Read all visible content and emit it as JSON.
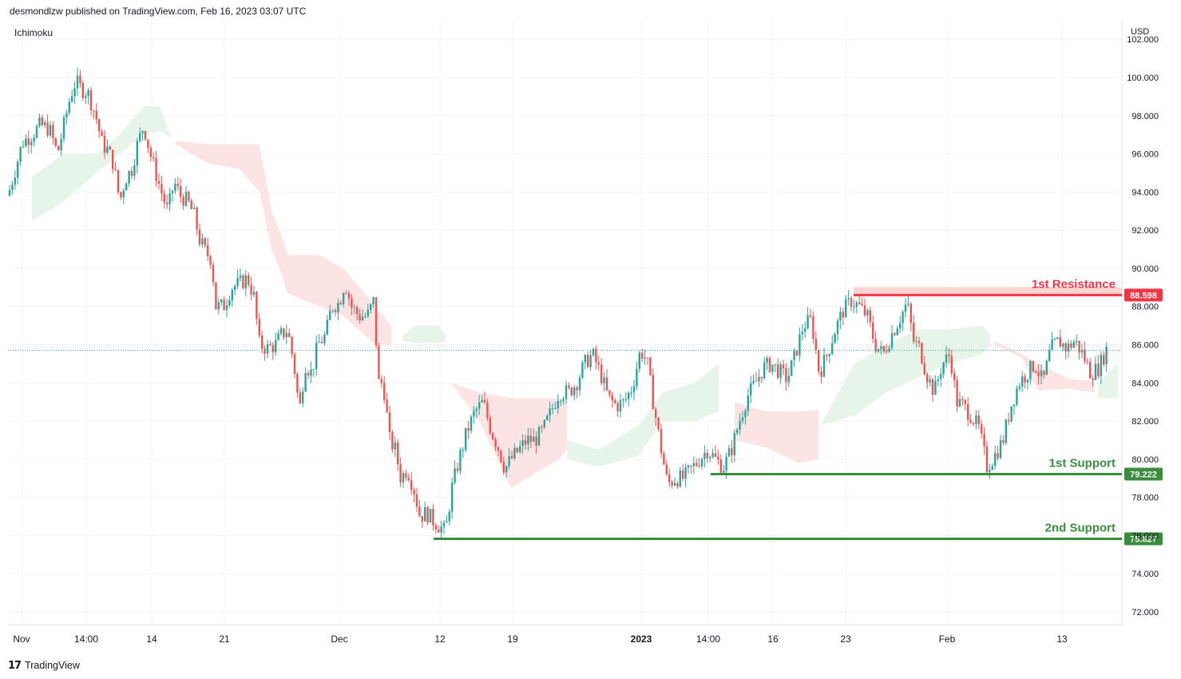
{
  "header": {
    "published": "desmondlzw published on TradingView.com, Feb 16, 2023 03:07 UTC"
  },
  "indicator_label": "Ichimoku",
  "currency": "USD",
  "footer": {
    "brand": "TradingView",
    "logo_icon": "tradingview-logo-icon"
  },
  "colors": {
    "up": "#26a69a",
    "down": "#ef5350",
    "resistance": "#f23645",
    "support": "#388e3c",
    "cloud_bull": "#e6f4ea",
    "cloud_bear": "#fde4e4"
  },
  "chart_data": {
    "type": "candlestick",
    "ylim": [
      71,
      103
    ],
    "y_ticks": [
      "72.000",
      "74.000",
      "76.000",
      "78.000",
      "80.000",
      "82.000",
      "84.000",
      "86.000",
      "88.000",
      "90.000",
      "92.000",
      "94.000",
      "96.000",
      "98.000",
      "100.000",
      "102.000"
    ],
    "x_ticks": [
      "Nov",
      "14:00",
      "14",
      "21",
      "Dec",
      "12",
      "19",
      "2023",
      "14:00",
      "16",
      "23",
      "Feb",
      "13"
    ],
    "current_price": 85.7,
    "levels": [
      {
        "label": "1st Resistance",
        "value": 88.598,
        "value_text": "88.598",
        "kind": "resistance"
      },
      {
        "label": "1st Support",
        "value": 79.222,
        "value_text": "79.222",
        "kind": "support"
      },
      {
        "label": "2nd Support",
        "value": 75.827,
        "value_text": "75.827",
        "kind": "support"
      }
    ],
    "price_path": [
      [
        0,
        94.5
      ],
      [
        8,
        93.5
      ],
      [
        18,
        95
      ],
      [
        28,
        96.6
      ],
      [
        40,
        97
      ],
      [
        50,
        97.5
      ],
      [
        62,
        97.3
      ],
      [
        72,
        96
      ],
      [
        80,
        97.5
      ],
      [
        88,
        99
      ],
      [
        95,
        99.8
      ],
      [
        102,
        99.4
      ],
      [
        110,
        99.2
      ],
      [
        120,
        98
      ],
      [
        128,
        96.5
      ],
      [
        135,
        96.2
      ],
      [
        142,
        95.5
      ],
      [
        150,
        93.5
      ],
      [
        157,
        94.7
      ],
      [
        165,
        95.2
      ],
      [
        172,
        96.5
      ],
      [
        180,
        97.5
      ],
      [
        188,
        96
      ],
      [
        195,
        95
      ],
      [
        202,
        94
      ],
      [
        210,
        93
      ],
      [
        218,
        94.5
      ],
      [
        226,
        93.8
      ],
      [
        235,
        93.5
      ],
      [
        243,
        92.8
      ],
      [
        250,
        91.5
      ],
      [
        258,
        90.8
      ],
      [
        265,
        90.5
      ],
      [
        270,
        88
      ],
      [
        280,
        88
      ],
      [
        290,
        89
      ],
      [
        300,
        89.2
      ],
      [
        310,
        89.5
      ],
      [
        318,
        88.5
      ],
      [
        325,
        86
      ],
      [
        335,
        85.8
      ],
      [
        345,
        86
      ],
      [
        352,
        86.5
      ],
      [
        360,
        86.8
      ],
      [
        368,
        85
      ],
      [
        375,
        82.5
      ],
      [
        382,
        85
      ],
      [
        390,
        84.5
      ],
      [
        398,
        86
      ],
      [
        408,
        86.5
      ],
      [
        415,
        88
      ],
      [
        425,
        88.2
      ],
      [
        432,
        89.3
      ],
      [
        440,
        88
      ],
      [
        450,
        87.5
      ],
      [
        460,
        87.5
      ],
      [
        468,
        88.3
      ],
      [
        474,
        84
      ],
      [
        480,
        84
      ],
      [
        488,
        81
      ],
      [
        495,
        80.5
      ],
      [
        502,
        79
      ],
      [
        510,
        79.5
      ],
      [
        518,
        78.5
      ],
      [
        526,
        77
      ],
      [
        534,
        77.2
      ],
      [
        542,
        76.8
      ],
      [
        550,
        76.5
      ],
      [
        558,
        76.2
      ],
      [
        566,
        78.5
      ],
      [
        575,
        80
      ],
      [
        585,
        81.5
      ],
      [
        595,
        82.5
      ],
      [
        605,
        83
      ],
      [
        615,
        81.5
      ],
      [
        625,
        80.5
      ],
      [
        632,
        79.5
      ],
      [
        640,
        80
      ],
      [
        650,
        80.5
      ],
      [
        660,
        81
      ],
      [
        670,
        81
      ],
      [
        680,
        81.5
      ],
      [
        690,
        82.5
      ],
      [
        700,
        83.5
      ],
      [
        712,
        83.5
      ],
      [
        722,
        84
      ],
      [
        732,
        85
      ],
      [
        742,
        85.5
      ],
      [
        752,
        84.5
      ],
      [
        762,
        83.2
      ],
      [
        772,
        82.8
      ],
      [
        782,
        83
      ],
      [
        792,
        83.8
      ],
      [
        802,
        85.7
      ],
      [
        810,
        85.2
      ],
      [
        818,
        83
      ],
      [
        828,
        80.5
      ],
      [
        836,
        78.7
      ],
      [
        846,
        79
      ],
      [
        856,
        79
      ],
      [
        866,
        79.5
      ],
      [
        876,
        80
      ],
      [
        886,
        80.5
      ],
      [
        896,
        80
      ],
      [
        906,
        79.6
      ],
      [
        916,
        80.5
      ],
      [
        926,
        82
      ],
      [
        936,
        83.3
      ],
      [
        946,
        84
      ],
      [
        956,
        84.8
      ],
      [
        966,
        85
      ],
      [
        976,
        84.6
      ],
      [
        986,
        84.2
      ],
      [
        996,
        85.5
      ],
      [
        1006,
        87
      ],
      [
        1016,
        87.3
      ],
      [
        1026,
        84.5
      ],
      [
        1036,
        85.5
      ],
      [
        1046,
        86.8
      ],
      [
        1056,
        87.8
      ],
      [
        1066,
        88.3
      ],
      [
        1076,
        88
      ],
      [
        1086,
        87.5
      ],
      [
        1096,
        86
      ],
      [
        1106,
        85.5
      ],
      [
        1116,
        86.5
      ],
      [
        1126,
        87.3
      ],
      [
        1136,
        88.2
      ],
      [
        1144,
        86.2
      ],
      [
        1152,
        85.8
      ],
      [
        1160,
        84.5
      ],
      [
        1170,
        83.5
      ],
      [
        1180,
        85
      ],
      [
        1190,
        85.5
      ],
      [
        1198,
        83
      ],
      [
        1206,
        82.8
      ],
      [
        1216,
        82.3
      ],
      [
        1226,
        81.6
      ],
      [
        1236,
        79.6
      ],
      [
        1246,
        80.2
      ],
      [
        1256,
        81
      ],
      [
        1266,
        82.8
      ],
      [
        1276,
        84
      ],
      [
        1286,
        84.5
      ],
      [
        1296,
        85
      ],
      [
        1306,
        84
      ],
      [
        1316,
        85.8
      ],
      [
        1326,
        86.2
      ],
      [
        1336,
        85.8
      ],
      [
        1346,
        86.2
      ],
      [
        1356,
        85.5
      ],
      [
        1366,
        84.5
      ],
      [
        1376,
        84.8
      ],
      [
        1386,
        85.8
      ]
    ],
    "cloud": [
      {
        "color": "bull",
        "top": [
          [
            40,
            94.8
          ],
          [
            80,
            96
          ],
          [
            120,
            96
          ],
          [
            150,
            97
          ],
          [
            180,
            98.5
          ],
          [
            200,
            98.5
          ],
          [
            215,
            96.8
          ]
        ],
        "bottom": [
          [
            40,
            92.5
          ],
          [
            80,
            93.5
          ],
          [
            120,
            95
          ],
          [
            150,
            96
          ],
          [
            180,
            97
          ],
          [
            200,
            97.2
          ],
          [
            215,
            96.8
          ]
        ]
      },
      {
        "color": "bear",
        "top": [
          [
            220,
            96.7
          ],
          [
            260,
            96.5
          ],
          [
            300,
            96.5
          ],
          [
            325,
            96.5
          ],
          [
            340,
            93
          ],
          [
            350,
            92
          ],
          [
            360,
            90.7
          ],
          [
            400,
            90.7
          ],
          [
            430,
            90
          ],
          [
            470,
            88
          ],
          [
            490,
            87
          ]
        ],
        "bottom": [
          [
            220,
            96.5
          ],
          [
            260,
            95.5
          ],
          [
            300,
            95.2
          ],
          [
            325,
            94
          ],
          [
            340,
            91
          ],
          [
            350,
            90
          ],
          [
            360,
            88.7
          ],
          [
            400,
            88
          ],
          [
            430,
            87.5
          ],
          [
            470,
            86
          ],
          [
            490,
            86
          ]
        ]
      },
      {
        "color": "bull",
        "top": [
          [
            505,
            86.5
          ],
          [
            520,
            87
          ],
          [
            550,
            87
          ],
          [
            558,
            86.5
          ]
        ],
        "bottom": [
          [
            505,
            86.2
          ],
          [
            520,
            86.1
          ],
          [
            550,
            86.1
          ],
          [
            558,
            86.2
          ]
        ]
      },
      {
        "color": "bear",
        "top": [
          [
            565,
            84
          ],
          [
            600,
            83.5
          ],
          [
            640,
            83.2
          ],
          [
            700,
            83.2
          ],
          [
            710,
            83
          ]
        ],
        "bottom": [
          [
            565,
            84
          ],
          [
            600,
            82
          ],
          [
            640,
            78.5
          ],
          [
            660,
            79
          ],
          [
            700,
            80
          ],
          [
            710,
            80.5
          ]
        ]
      },
      {
        "color": "bull",
        "top": [
          [
            710,
            81
          ],
          [
            750,
            80.5
          ],
          [
            800,
            81.8
          ],
          [
            830,
            83.5
          ],
          [
            870,
            84
          ],
          [
            900,
            85
          ]
        ],
        "bottom": [
          [
            710,
            80
          ],
          [
            750,
            79.6
          ],
          [
            800,
            80.2
          ],
          [
            830,
            82
          ],
          [
            870,
            82
          ],
          [
            900,
            82.5
          ]
        ]
      },
      {
        "color": "bear",
        "top": [
          [
            920,
            83
          ],
          [
            960,
            82.5
          ],
          [
            1000,
            82.5
          ],
          [
            1025,
            82.6
          ]
        ],
        "bottom": [
          [
            920,
            81
          ],
          [
            960,
            80.6
          ],
          [
            1000,
            79.8
          ],
          [
            1025,
            80
          ]
        ]
      },
      {
        "color": "bull",
        "top": [
          [
            1030,
            82
          ],
          [
            1070,
            85
          ],
          [
            1110,
            86
          ],
          [
            1150,
            86.8
          ],
          [
            1190,
            86.8
          ],
          [
            1230,
            87
          ],
          [
            1240,
            86.5
          ]
        ],
        "bottom": [
          [
            1030,
            81.8
          ],
          [
            1070,
            82.3
          ],
          [
            1110,
            83.5
          ],
          [
            1150,
            84.3
          ],
          [
            1190,
            85
          ],
          [
            1230,
            85.5
          ],
          [
            1240,
            86
          ]
        ]
      },
      {
        "color": "bear",
        "top": [
          [
            1245,
            86.2
          ],
          [
            1280,
            85.5
          ],
          [
            1300,
            85
          ],
          [
            1340,
            84.2
          ],
          [
            1370,
            84.1
          ]
        ],
        "bottom": [
          [
            1245,
            86
          ],
          [
            1280,
            85.3
          ],
          [
            1300,
            83.6
          ],
          [
            1340,
            83.7
          ],
          [
            1370,
            83.5
          ]
        ]
      },
      {
        "color": "bull",
        "top": [
          [
            1375,
            84
          ],
          [
            1400,
            85
          ]
        ],
        "bottom": [
          [
            1375,
            83.2
          ],
          [
            1400,
            83.2
          ]
        ]
      }
    ]
  }
}
